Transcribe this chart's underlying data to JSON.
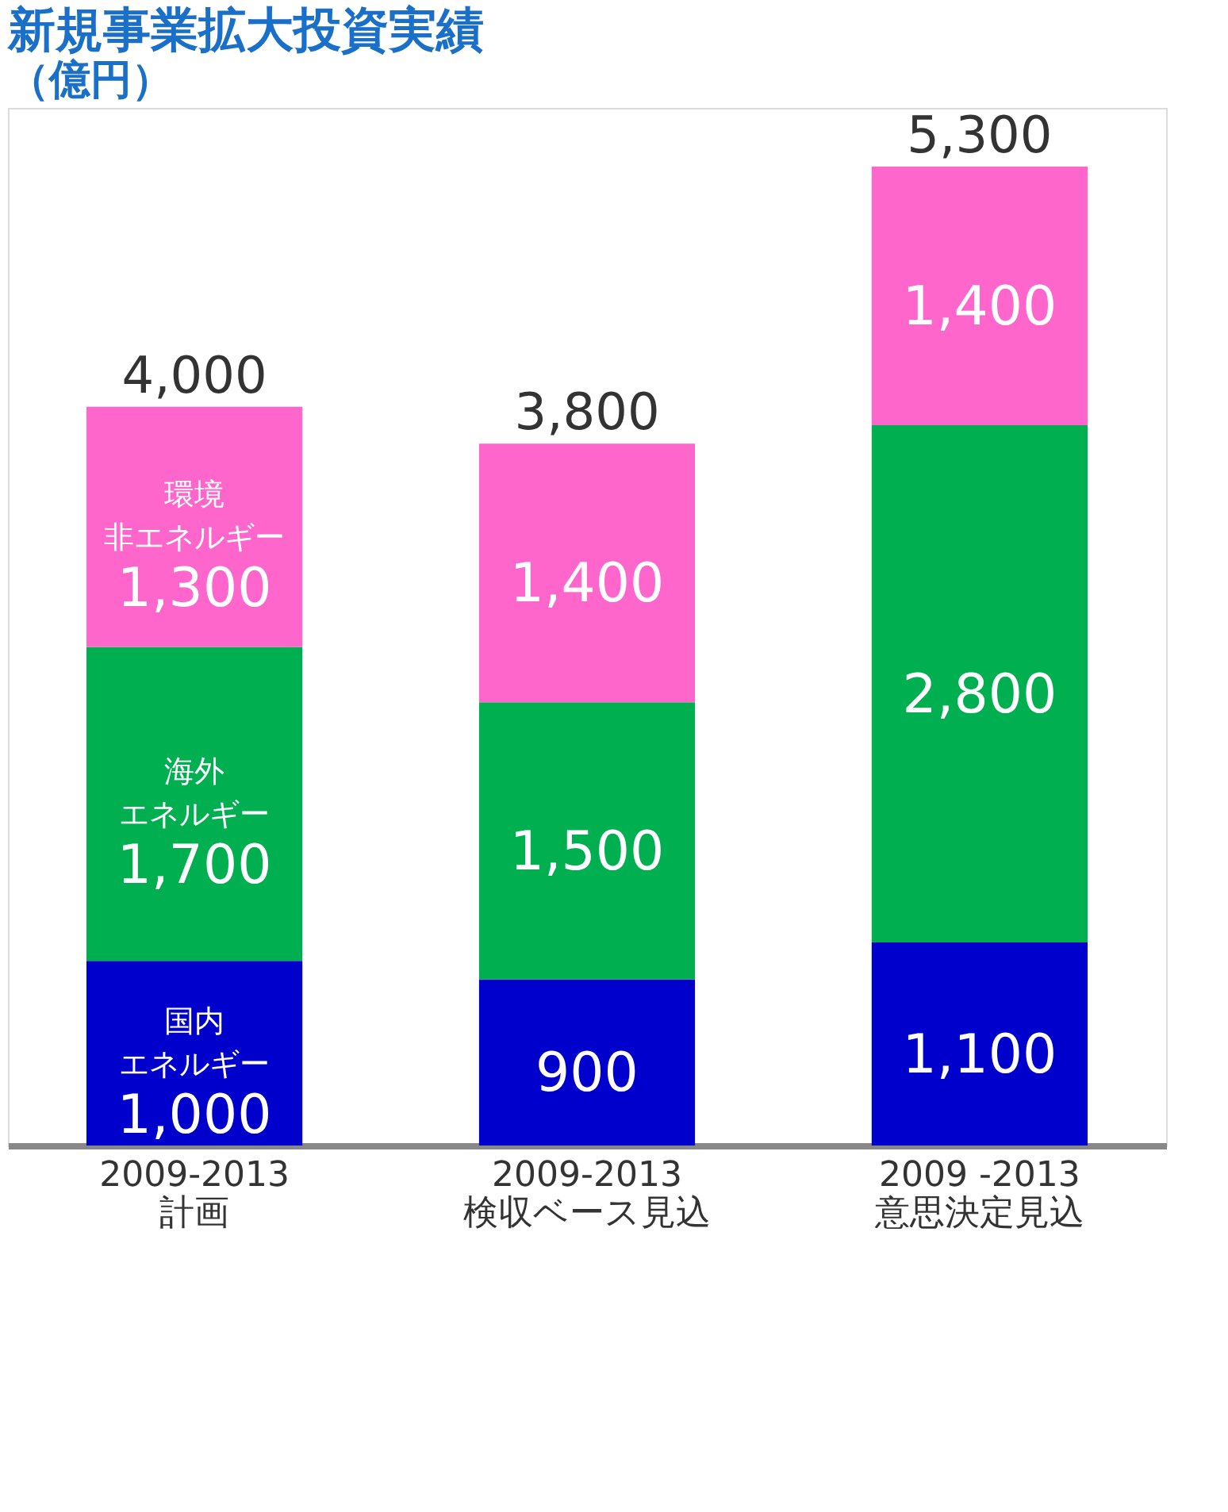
{
  "chart_data": {
    "type": "bar",
    "title": "新規事業拡大投資実績",
    "subtitle": "（億円）",
    "categories": [
      "2009-2013\n計画",
      "2009-2013\n検収ベース見込",
      "2009 -2013\n意思決定見込"
    ],
    "stacked": true,
    "grid": false,
    "tick_labels": "x",
    "series": [
      {
        "name": "国内エネルギー",
        "color": "#0000cc",
        "values": [
          1000,
          900,
          1100
        ],
        "value_labels": [
          "1,000",
          "900",
          "1,100"
        ]
      },
      {
        "name": "海外エネルギー",
        "color": "#00b050",
        "values": [
          1700,
          1500,
          2800
        ],
        "value_labels": [
          "1,700",
          "1,500",
          "2,800"
        ]
      },
      {
        "name": "環境非エネルギー",
        "color": "#ff66cc",
        "values": [
          1300,
          1400,
          1400
        ],
        "value_labels": [
          "1,300",
          "1,400",
          "1,400"
        ]
      }
    ],
    "totals": [
      "4,000",
      "3,800",
      "5,300"
    ]
  }
}
